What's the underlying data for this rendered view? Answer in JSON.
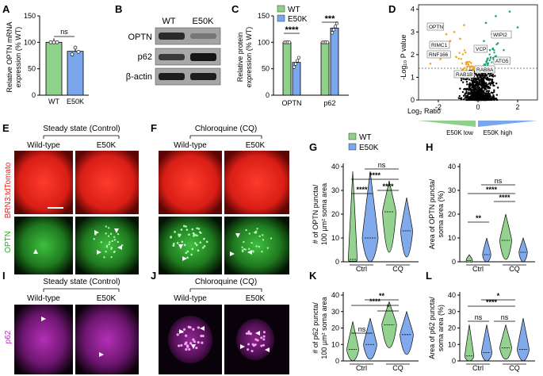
{
  "panels": {
    "A": {
      "letter": "A",
      "ylabel": "Relative OPTN mRNA\nexpression (% WT)",
      "yticks": [
        "0",
        "50",
        "100",
        "150"
      ],
      "categories": [
        "WT",
        "E50K"
      ],
      "sig": "ns"
    },
    "B": {
      "letter": "B",
      "cols": [
        "WT",
        "E50K"
      ],
      "rows": [
        "OPTN",
        "p62",
        "β-actin"
      ]
    },
    "C": {
      "letter": "C",
      "legend": [
        "WT",
        "E50K"
      ],
      "ylabel": "Relative protein\nexpression (% WT)",
      "yticks": [
        "0",
        "50",
        "100",
        "150"
      ],
      "categories": [
        "OPTN",
        "p62"
      ],
      "sig": [
        "****",
        "***"
      ]
    },
    "D": {
      "letter": "D",
      "ylabel": "-Log₁₀ P value",
      "xlabel": "Log₂ Ratio",
      "xticks": [
        "-2",
        "0",
        "2"
      ],
      "yticks": [
        "0",
        "1",
        "2",
        "3",
        "4"
      ],
      "genes": [
        "OPTN",
        "RIMC1",
        "RNF166",
        "WIPI2",
        "VCP",
        "ATG5",
        "RAB8A",
        "RAB1B"
      ],
      "low": "E50K low",
      "high": "E50K high"
    },
    "E": {
      "letter": "E",
      "title": "Steady state (Control)",
      "cols": [
        "Wild-type",
        "E50K"
      ]
    },
    "F": {
      "letter": "F",
      "title": "Chloroquine (CQ)",
      "cols": [
        "Wild-type",
        "E50K"
      ]
    },
    "G": {
      "letter": "G",
      "legend": [
        "WT",
        "E50K"
      ],
      "ylabel": "# of OPTN puncta/\n100 µm² soma area",
      "yticks": [
        "0",
        "10",
        "20",
        "30",
        "40"
      ],
      "groups": [
        "Ctrl",
        "CQ"
      ],
      "sig": [
        "ns",
        "****",
        "****",
        "****"
      ]
    },
    "H": {
      "letter": "H",
      "ylabel": "Area of OPTN puncta/\nsoma area (%)",
      "yticks": [
        "0",
        "10",
        "20",
        "30",
        "40"
      ],
      "groups": [
        "Ctrl",
        "CQ"
      ],
      "sig": [
        "ns",
        "****",
        "**",
        "****"
      ]
    },
    "I": {
      "letter": "I",
      "title": "Steady state (Control)",
      "cols": [
        "Wild-type",
        "E50K"
      ]
    },
    "J": {
      "letter": "J",
      "title": "Chloroquine (CQ)",
      "cols": [
        "Wild-type",
        "E50K"
      ]
    },
    "K": {
      "letter": "K",
      "ylabel": "# of p62 puncta/\n100 µm² soma area",
      "yticks": [
        "0",
        "10",
        "20",
        "30",
        "40"
      ],
      "groups": [
        "Ctrl",
        "CQ"
      ],
      "sig": [
        "**",
        "****",
        "ns",
        "*"
      ]
    },
    "L": {
      "letter": "L",
      "ylabel": "Area of p62 puncta/\nsoma area (%)",
      "yticks": [
        "0",
        "10",
        "20",
        "30",
        "40"
      ],
      "groups": [
        "Ctrl",
        "CQ"
      ],
      "sig": [
        "*",
        "****",
        "ns",
        "ns"
      ]
    }
  },
  "row_labels": {
    "red": "BRN3:tdTomato",
    "green": "OPTN",
    "magenta": "p62"
  },
  "colors": {
    "wt": "#8fd18a",
    "e50k": "#7aa6ec",
    "red": "#e8231d",
    "green": "#3cb43c",
    "magenta": "#b22bb4",
    "dot_orange": "#f2a31b",
    "dot_green": "#1fa37a"
  },
  "chart_data": [
    {
      "type": "bar",
      "panel": "A",
      "categories": [
        "WT",
        "E50K"
      ],
      "values": [
        100,
        83
      ],
      "ylim": [
        0,
        150
      ]
    },
    {
      "type": "bar",
      "panel": "C",
      "categories": [
        "OPTN",
        "p62"
      ],
      "series": [
        {
          "name": "WT",
          "values": [
            100,
            100
          ]
        },
        {
          "name": "E50K",
          "values": [
            62,
            127
          ]
        }
      ],
      "ylim": [
        0,
        150
      ]
    },
    {
      "type": "scatter",
      "panel": "D",
      "xlim": [
        -3,
        3
      ],
      "ylim": [
        0,
        4.2
      ]
    },
    {
      "type": "violin",
      "panel": "G",
      "groups": [
        "Ctrl",
        "CQ"
      ],
      "series": [
        {
          "name": "WT",
          "medians": [
            1,
            21
          ]
        },
        {
          "name": "E50K",
          "medians": [
            10,
            13
          ]
        }
      ],
      "ylim": [
        0,
        40
      ]
    },
    {
      "type": "violin",
      "panel": "H",
      "groups": [
        "Ctrl",
        "CQ"
      ],
      "series": [
        {
          "name": "WT",
          "medians": [
            0.5,
            9
          ]
        },
        {
          "name": "E50K",
          "medians": [
            3,
            4
          ]
        }
      ],
      "ylim": [
        0,
        40
      ]
    },
    {
      "type": "violin",
      "panel": "K",
      "groups": [
        "Ctrl",
        "CQ"
      ],
      "series": [
        {
          "name": "WT",
          "medians": [
            7,
            22
          ]
        },
        {
          "name": "E50K",
          "medians": [
            10,
            16
          ]
        }
      ],
      "ylim": [
        0,
        40
      ]
    },
    {
      "type": "violin",
      "panel": "L",
      "groups": [
        "Ctrl",
        "CQ"
      ],
      "series": [
        {
          "name": "WT",
          "medians": [
            3,
            8
          ]
        },
        {
          "name": "E50K",
          "medians": [
            5,
            7
          ]
        }
      ],
      "ylim": [
        0,
        40
      ]
    }
  ]
}
